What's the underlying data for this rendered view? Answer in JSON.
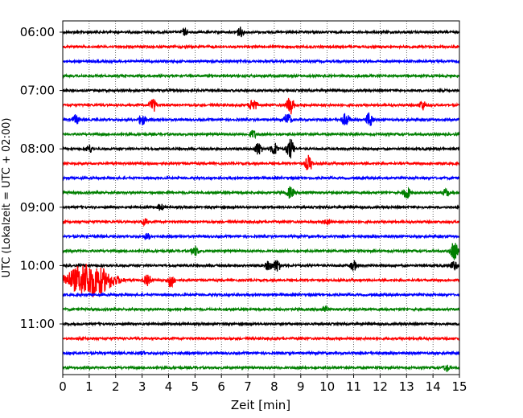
{
  "chart_data": {
    "type": "line",
    "title": "",
    "xlabel": "Zeit  [min]",
    "ylabel": "UTC (Lokalzeit = UTC + 02:00)",
    "xlim": [
      0,
      15
    ],
    "x_ticks": [
      "0",
      "1",
      "2",
      "3",
      "4",
      "5",
      "6",
      "7",
      "8",
      "9",
      "10",
      "11",
      "12",
      "13",
      "14",
      "15"
    ],
    "y_ticks": [
      "06:00",
      "07:00",
      "08:00",
      "09:00",
      "10:00",
      "11:00"
    ],
    "grid": "vertical dotted",
    "trace_colors": [
      "#000000",
      "#ff0000",
      "#0000ff",
      "#008000"
    ],
    "trace_count": 24,
    "trace_interval_min": 15,
    "start_time": "06:00",
    "events": [
      {
        "trace": 0,
        "t": 6.7,
        "amp": 7
      },
      {
        "trace": 0,
        "t": 4.6,
        "amp": 5
      },
      {
        "trace": 5,
        "t": 3.4,
        "amp": 10
      },
      {
        "trace": 5,
        "t": 7.2,
        "amp": 10
      },
      {
        "trace": 5,
        "t": 8.6,
        "amp": 12
      },
      {
        "trace": 5,
        "t": 13.6,
        "amp": 7
      },
      {
        "trace": 6,
        "t": 0.5,
        "amp": 7
      },
      {
        "trace": 6,
        "t": 3.0,
        "amp": 8
      },
      {
        "trace": 6,
        "t": 8.5,
        "amp": 9
      },
      {
        "trace": 6,
        "t": 10.7,
        "amp": 9
      },
      {
        "trace": 6,
        "t": 11.6,
        "amp": 10
      },
      {
        "trace": 7,
        "t": 7.2,
        "amp": 6
      },
      {
        "trace": 8,
        "t": 1.0,
        "amp": 6
      },
      {
        "trace": 8,
        "t": 7.4,
        "amp": 9
      },
      {
        "trace": 8,
        "t": 8.0,
        "amp": 9
      },
      {
        "trace": 8,
        "t": 8.6,
        "amp": 14
      },
      {
        "trace": 9,
        "t": 9.3,
        "amp": 11
      },
      {
        "trace": 11,
        "t": 8.6,
        "amp": 8
      },
      {
        "trace": 11,
        "t": 13.0,
        "amp": 9
      },
      {
        "trace": 11,
        "t": 14.5,
        "amp": 6
      },
      {
        "trace": 12,
        "t": 3.7,
        "amp": 5
      },
      {
        "trace": 13,
        "t": 3.1,
        "amp": 5
      },
      {
        "trace": 13,
        "t": 10.0,
        "amp": 5
      },
      {
        "trace": 14,
        "t": 3.2,
        "amp": 5
      },
      {
        "trace": 15,
        "t": 5.0,
        "amp": 7
      },
      {
        "trace": 15,
        "t": 14.8,
        "amp": 12
      },
      {
        "trace": 16,
        "t": 7.8,
        "amp": 8
      },
      {
        "trace": 16,
        "t": 8.1,
        "amp": 9
      },
      {
        "trace": 16,
        "t": 11.0,
        "amp": 7
      },
      {
        "trace": 16,
        "t": 14.8,
        "amp": 7
      },
      {
        "trace": 17,
        "t": 1.0,
        "amp": 22
      },
      {
        "trace": 17,
        "t": 3.2,
        "amp": 10
      },
      {
        "trace": 17,
        "t": 4.1,
        "amp": 10
      },
      {
        "trace": 19,
        "t": 9.9,
        "amp": 5
      },
      {
        "trace": 22,
        "t": 3.0,
        "amp": 3
      },
      {
        "trace": 23,
        "t": 14.5,
        "amp": 5
      }
    ]
  }
}
